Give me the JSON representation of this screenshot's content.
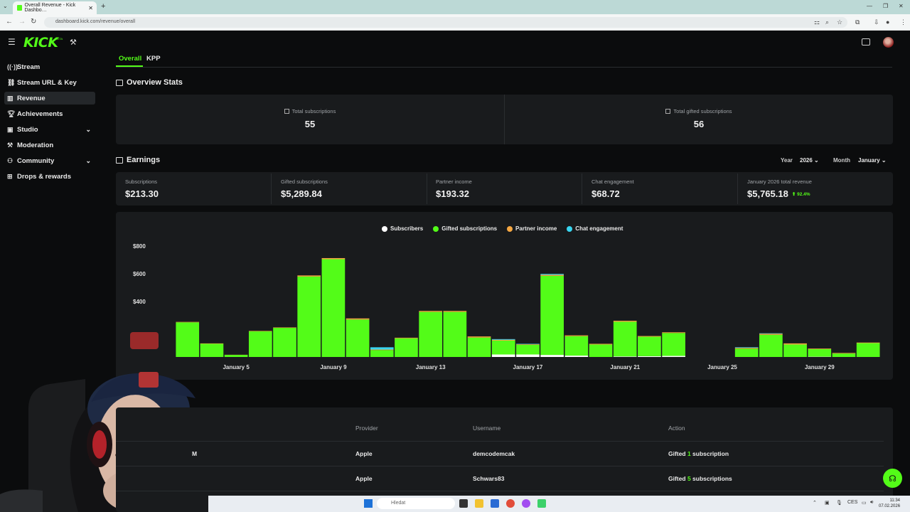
{
  "browser": {
    "tab_title": "Overall Revenue - Kick Dashbo…",
    "url": "dashboard.kick.com/revenue/overall",
    "new_tab": "+",
    "close": "✕"
  },
  "brand": {
    "logo": "KICK",
    "beta": "BETA"
  },
  "sidebar": {
    "items": [
      {
        "label": "Stream",
        "icon": "broadcast-icon"
      },
      {
        "label": "Stream URL & Key",
        "icon": "link-icon"
      },
      {
        "label": "Revenue",
        "icon": "chart-icon",
        "active": true
      },
      {
        "label": "Achievements",
        "icon": "trophy-icon"
      },
      {
        "label": "Studio",
        "icon": "studio-icon",
        "expandable": true
      },
      {
        "label": "Moderation",
        "icon": "hammer-icon"
      },
      {
        "label": "Community",
        "icon": "users-icon",
        "expandable": true
      },
      {
        "label": "Drops & rewards",
        "icon": "gift-icon"
      }
    ]
  },
  "tabs": {
    "overall": "Overall",
    "kpp": "KPP"
  },
  "overview": {
    "title": "Overview Stats",
    "total_subs_label": "Total subscriptions",
    "total_subs_value": "55",
    "total_gifted_label": "Total gifted subscriptions",
    "total_gifted_value": "56"
  },
  "earnings": {
    "title": "Earnings",
    "year_label": "Year",
    "year_value": "2026",
    "month_label": "Month",
    "month_value": "January",
    "cards": [
      {
        "label": "Subscriptions",
        "value": "$213.30"
      },
      {
        "label": "Gifted subscriptions",
        "value": "$5,289.84"
      },
      {
        "label": "Partner income",
        "value": "$193.32"
      },
      {
        "label": "Chat engagement",
        "value": "$68.72"
      },
      {
        "label": "January 2026 total revenue",
        "value": "$5,765.18",
        "change": "92.4%"
      }
    ]
  },
  "chart_data": {
    "type": "bar",
    "stacked": true,
    "legend_position": "top-center",
    "series_colors": {
      "Subscribers": "#ffffff",
      "Gifted subscriptions": "#53fc18",
      "Partner income": "#f5a742",
      "Chat engagement": "#38d5f0"
    },
    "yticks": [
      "$800",
      "$600",
      "$400"
    ],
    "ylim": [
      0,
      800
    ],
    "xtick_labels": [
      "January 5",
      "January 9",
      "January 13",
      "January 17",
      "January 21",
      "January 25",
      "January 29"
    ],
    "categories": [
      "1",
      "2",
      "3",
      "4",
      "5",
      "6",
      "7",
      "8",
      "9",
      "10",
      "11",
      "12",
      "13",
      "14",
      "15",
      "16",
      "17",
      "18",
      "19",
      "20",
      "21",
      "22",
      "23",
      "24",
      "25",
      "26",
      "27",
      "28",
      "29",
      "30",
      "31"
    ],
    "series": [
      {
        "name": "Subscribers",
        "values": [
          0,
          0,
          0,
          0,
          0,
          0,
          0,
          0,
          0,
          0,
          0,
          0,
          0,
          0,
          0,
          18,
          18,
          15,
          10,
          0,
          4,
          6,
          8,
          0,
          0,
          0,
          0,
          0,
          2,
          0,
          0
        ]
      },
      {
        "name": "Gifted subscriptions",
        "values": [
          0,
          0,
          250,
          95,
          15,
          185,
          210,
          580,
          705,
          270,
          50,
          135,
          325,
          325,
          140,
          100,
          70,
          570,
          140,
          90,
          250,
          140,
          165,
          0,
          0,
          60,
          160,
          90,
          55,
          25,
          100
        ]
      },
      {
        "name": "Partner income",
        "values": [
          0,
          0,
          3,
          3,
          1,
          3,
          3,
          8,
          8,
          8,
          4,
          4,
          7,
          7,
          8,
          6,
          4,
          8,
          6,
          5,
          7,
          5,
          5,
          0,
          0,
          6,
          8,
          8,
          4,
          4,
          4
        ]
      },
      {
        "name": "Chat engagement",
        "values": [
          0,
          0,
          0,
          0,
          0,
          0,
          0,
          0,
          0,
          0,
          16,
          0,
          0,
          0,
          0,
          5,
          3,
          6,
          0,
          0,
          0,
          0,
          0,
          0,
          0,
          4,
          3,
          0,
          0,
          0,
          0
        ]
      }
    ]
  },
  "table": {
    "headers": {
      "provider": "Provider",
      "username": "Username",
      "action": "Action"
    },
    "rows": [
      {
        "date_tail": "M",
        "provider": "Apple",
        "username": "demcodemcak",
        "action_prefix": "Gifted",
        "count": "1",
        "action_suffix": "subscription"
      },
      {
        "date_tail": "",
        "provider": "Apple",
        "username": "Schwars83",
        "action_prefix": "Gifted",
        "count": "5",
        "action_suffix": "subscriptions"
      }
    ]
  },
  "taskbar": {
    "search_placeholder": "Hledat",
    "lang": "CES",
    "time": "11:34",
    "date": "07.02.2026"
  }
}
